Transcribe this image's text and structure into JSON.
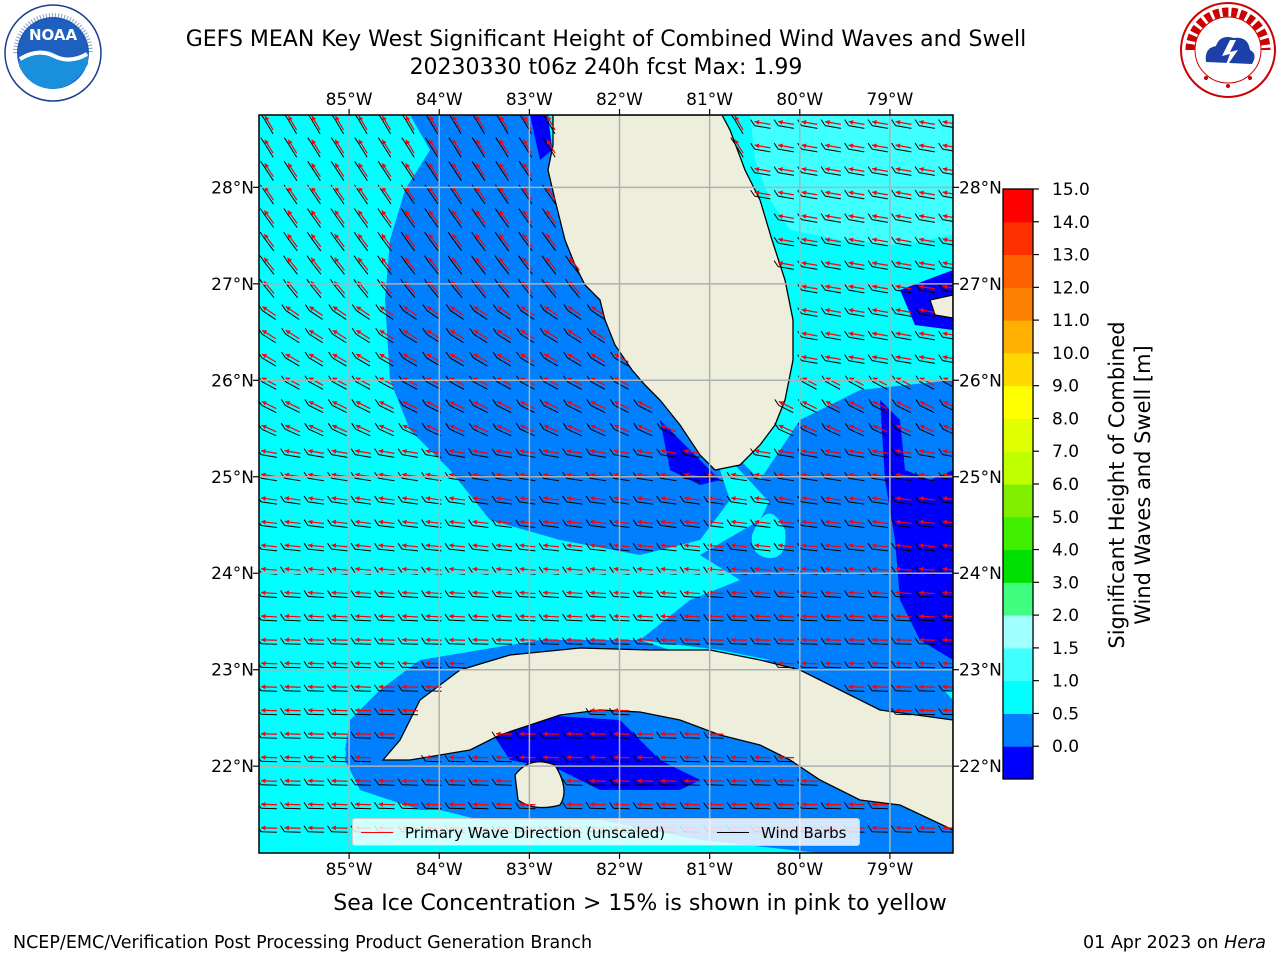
{
  "header": {
    "title_line1": "GEFS MEAN Key West Significant Height of Combined Wind Waves and Swell",
    "title_line2": "20230330 t06z 240h fcst   Max: 1.99"
  },
  "logos": {
    "left": {
      "name": "noaa-logo",
      "text": "NOAA",
      "ring_text": "NATIONAL OCEANIC AND ATMOSPHERIC ADMINISTRATION · U.S. DEPARTMENT OF COMMERCE"
    },
    "right": {
      "name": "nws-logo",
      "ring_text": "NATIONAL WEATHER SERVICE"
    }
  },
  "map": {
    "top_lon_labels": [
      "85°W",
      "84°W",
      "83°W",
      "82°W",
      "81°W",
      "80°W",
      "79°W"
    ],
    "bottom_lon_labels": [
      "85°W",
      "84°W",
      "83°W",
      "82°W",
      "81°W",
      "80°W",
      "79°W"
    ],
    "left_lat_labels": [
      "28°N",
      "27°N",
      "26°N",
      "25°N",
      "24°N",
      "23°N",
      "22°N"
    ],
    "right_lat_labels": [
      "28°N",
      "27°N",
      "26°N",
      "25°N",
      "24°N",
      "23°N",
      "22°N"
    ],
    "lon_range": [
      -86.0,
      -78.3
    ],
    "lat_range": [
      21.1,
      28.75
    ],
    "gridlines": true,
    "land_color": "#eeeedc",
    "wave_arrow_color": "#ff0000",
    "wind_barb_color": "#000000"
  },
  "legend": {
    "wave_label": "Primary Wave Direction (unscaled)",
    "wind_label": "Wind Barbs"
  },
  "colorbar": {
    "title_line1": "Significant Height of Combined",
    "title_line2": "Wind Waves and Swell [m]",
    "tick_labels": [
      "15.0",
      "14.0",
      "13.0",
      "12.0",
      "11.0",
      "10.0",
      "9.0",
      "8.0",
      "7.0",
      "6.0",
      "5.0",
      "4.0",
      "3.0",
      "2.0",
      "1.5",
      "1.0",
      "0.5",
      "0.0"
    ],
    "colors": [
      "#0000ff",
      "#0080ff",
      "#00ffff",
      "#40ffff",
      "#a0ffff",
      "#40ff80",
      "#00e000",
      "#40f000",
      "#80f000",
      "#c0ff00",
      "#e0ff00",
      "#ffff00",
      "#ffd800",
      "#ffb000",
      "#ff8000",
      "#ff6000",
      "#ff3000",
      "#ff0000"
    ]
  },
  "footer": {
    "ice_note": "Sea Ice Concentration > 15% is shown in pink to yellow",
    "left": "NCEP/EMC/Verification Post Processing Product Generation Branch",
    "right_prefix": "01 Apr 2023 on ",
    "right_host": "Hera"
  }
}
